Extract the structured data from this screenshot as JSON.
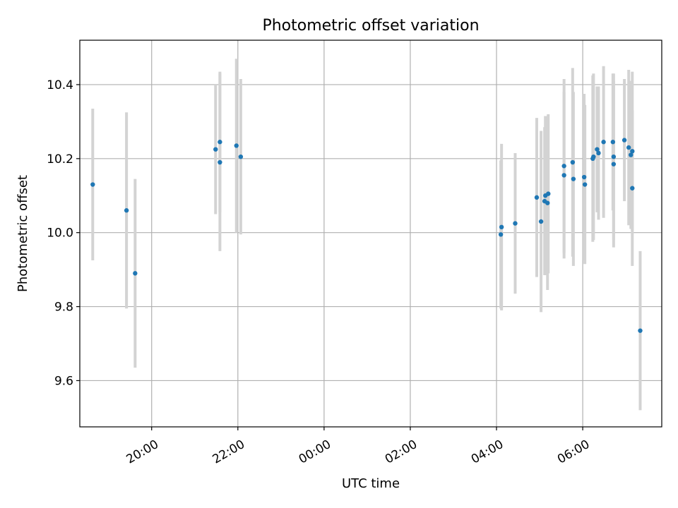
{
  "chart_data": {
    "type": "scatter",
    "title": "Photometric offset variation",
    "xlabel": "UTC time",
    "ylabel": "Photometric offset",
    "x_axis_kind": "time",
    "xlim": [
      "19:25",
      "07:20"
    ],
    "ylim": [
      9.475,
      10.52
    ],
    "x_ticks": [
      "20:00",
      "22:00",
      "00:00",
      "02:00",
      "04:00",
      "06:00"
    ],
    "x_tick_values": [
      "20:00",
      "22:00",
      "00:00",
      "02:00",
      "04:00",
      "06:00"
    ],
    "y_ticks": [
      9.6,
      9.8,
      10.0,
      10.2,
      10.4
    ],
    "y_tick_labels": [
      "9.6",
      "9.8",
      "10.0",
      "10.2",
      "10.4"
    ],
    "grid": true,
    "legend": false,
    "marker_color": "#1f77b4",
    "errorbar_color": "#d3d3d3",
    "points": [
      {
        "x": "18:38",
        "y": 10.13,
        "err": 0.205
      },
      {
        "x": "19:25",
        "y": 10.06,
        "err": 0.265
      },
      {
        "x": "19:37",
        "y": 9.89,
        "err": 0.255
      },
      {
        "x": "21:29",
        "y": 10.225,
        "err": 0.175
      },
      {
        "x": "21:35",
        "y": 10.19,
        "err": 0.24
      },
      {
        "x": "21:35",
        "y": 10.245,
        "err": 0.19
      },
      {
        "x": "21:58",
        "y": 10.235,
        "err": 0.235
      },
      {
        "x": "22:04",
        "y": 10.205,
        "err": 0.21
      },
      {
        "x": "04:06",
        "y": 9.995,
        "err": 0.2
      },
      {
        "x": "04:07",
        "y": 10.015,
        "err": 0.225
      },
      {
        "x": "04:26",
        "y": 10.025,
        "err": 0.19
      },
      {
        "x": "04:56",
        "y": 10.095,
        "err": 0.215
      },
      {
        "x": "05:02",
        "y": 10.03,
        "err": 0.245
      },
      {
        "x": "05:07",
        "y": 10.085,
        "err": 0.2
      },
      {
        "x": "05:08",
        "y": 10.1,
        "err": 0.215
      },
      {
        "x": "05:11",
        "y": 10.08,
        "err": 0.235
      },
      {
        "x": "05:12",
        "y": 10.105,
        "err": 0.215
      },
      {
        "x": "05:34",
        "y": 10.18,
        "err": 0.235
      },
      {
        "x": "05:34",
        "y": 10.155,
        "err": 0.225
      },
      {
        "x": "05:46",
        "y": 10.19,
        "err": 0.255
      },
      {
        "x": "05:47",
        "y": 10.145,
        "err": 0.235
      },
      {
        "x": "06:02",
        "y": 10.15,
        "err": 0.225
      },
      {
        "x": "06:03",
        "y": 10.13,
        "err": 0.215
      },
      {
        "x": "06:14",
        "y": 10.2,
        "err": 0.225
      },
      {
        "x": "06:15",
        "y": 10.205,
        "err": 0.225
      },
      {
        "x": "06:20",
        "y": 10.225,
        "err": 0.17
      },
      {
        "x": "06:22",
        "y": 10.215,
        "err": 0.18
      },
      {
        "x": "06:29",
        "y": 10.245,
        "err": 0.205
      },
      {
        "x": "06:42",
        "y": 10.245,
        "err": 0.185
      },
      {
        "x": "06:43",
        "y": 10.205,
        "err": 0.225
      },
      {
        "x": "06:43",
        "y": 10.185,
        "err": 0.225
      },
      {
        "x": "06:58",
        "y": 10.25,
        "err": 0.165
      },
      {
        "x": "07:04",
        "y": 10.23,
        "err": 0.21
      },
      {
        "x": "07:07",
        "y": 10.21,
        "err": 0.2
      },
      {
        "x": "07:09",
        "y": 10.22,
        "err": 0.215
      },
      {
        "x": "07:09",
        "y": 10.12,
        "err": 0.21
      },
      {
        "x": "07:20",
        "y": 9.735,
        "err": 0.215
      }
    ]
  }
}
